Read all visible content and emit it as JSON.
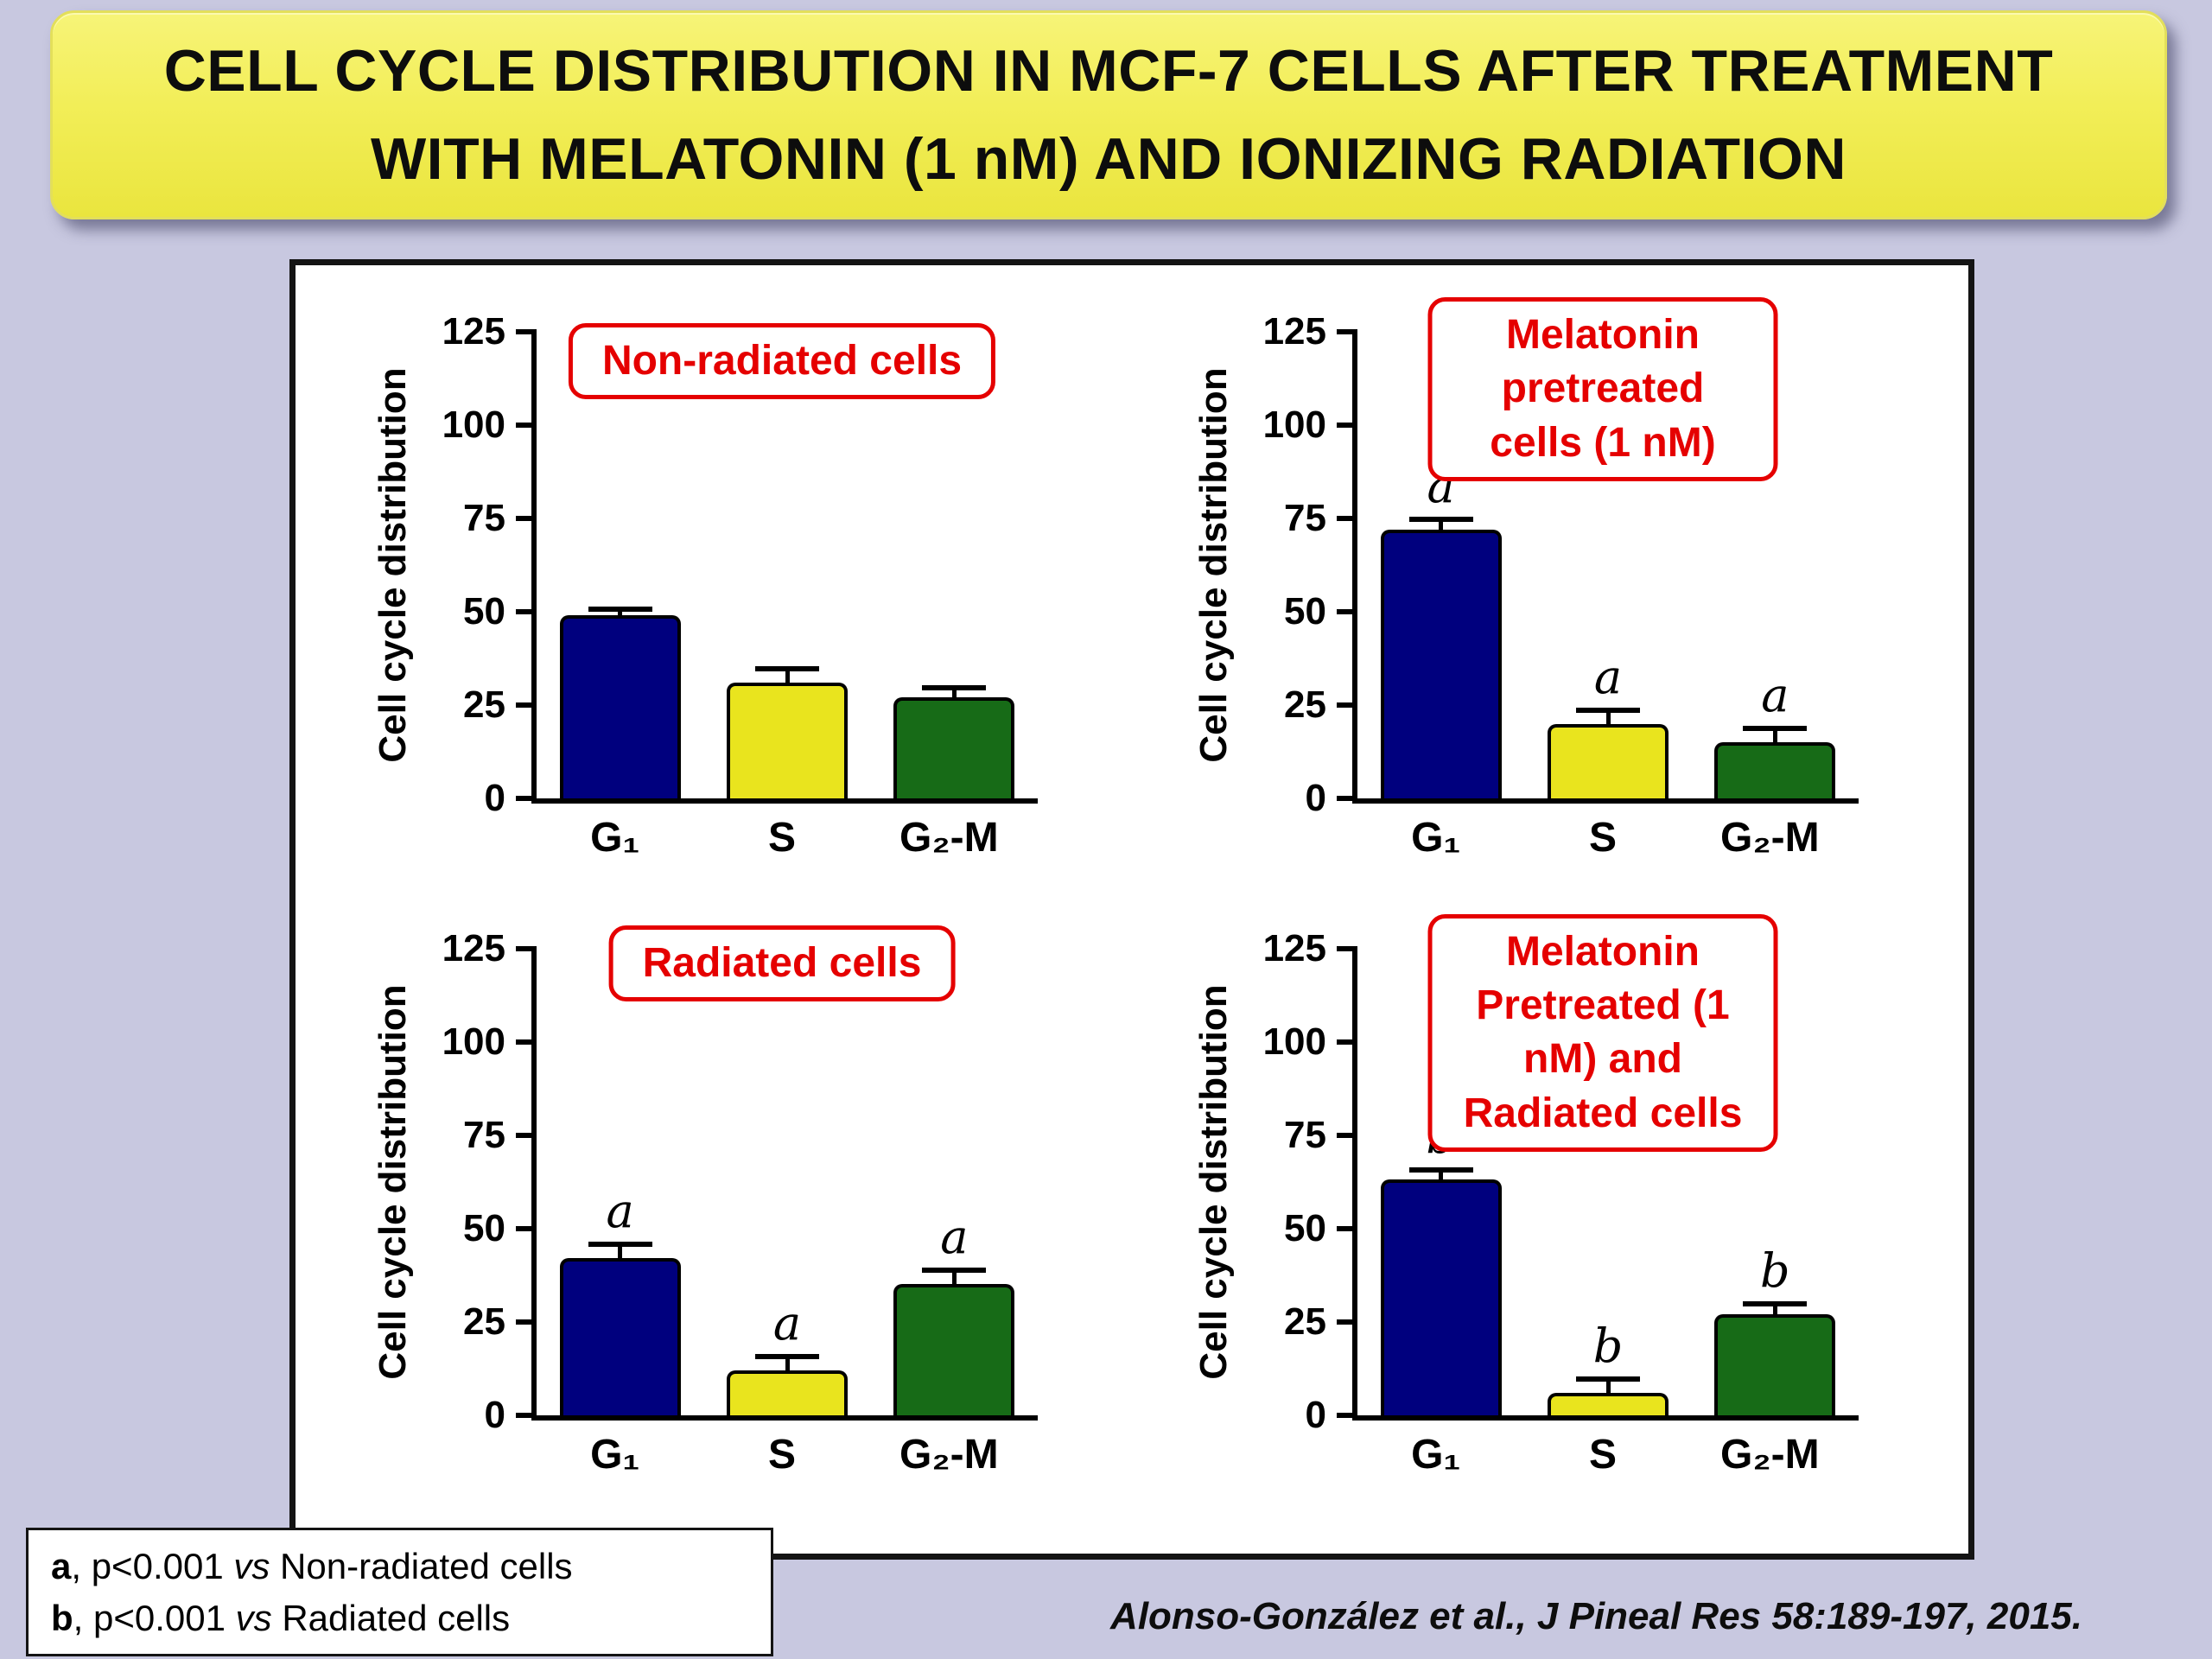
{
  "title": {
    "line1": "CELL CYCLE DISTRIBUTION IN MCF-7 CELLS AFTER TREATMENT",
    "line2": "WITH MELATONIN (1 nM) AND IONIZING RADIATION"
  },
  "citation": "Alonso-González et al., J Pineal Res 58:189-197, 2015.",
  "footnote": {
    "lines": [
      {
        "marker": "a",
        "mid": ", p<0.001 ",
        "vs": "vs",
        "rest": " Non-radiated cells"
      },
      {
        "marker": "b",
        "mid": ", p<0.001 ",
        "vs": "vs",
        "rest": " Radiated cells"
      }
    ]
  },
  "colors": {
    "background": "#c8c8e0",
    "banner_fill": "#f2ee58",
    "accent_red": "#e50000",
    "bar_colors": [
      "#00007e",
      "#e9e41e",
      "#176b17"
    ]
  },
  "chart_data": [
    {
      "type": "bar",
      "title": "Non-radiated cells",
      "ylabel": "Cell cycle distribution",
      "ylim": [
        0,
        125
      ],
      "yticks": [
        0,
        25,
        50,
        75,
        100,
        125
      ],
      "categories": [
        "G₁",
        "S",
        "G₂-M"
      ],
      "values": [
        49,
        31,
        27
      ],
      "errors": [
        1,
        3,
        2
      ],
      "sig_letters": [
        "",
        "",
        ""
      ],
      "legend": "none",
      "grid": false
    },
    {
      "type": "bar",
      "title": "Melatonin pretreated cells (1 nM)",
      "ylabel": "Cell cycle distribution",
      "ylim": [
        0,
        125
      ],
      "yticks": [
        0,
        25,
        50,
        75,
        100,
        125
      ],
      "categories": [
        "G₁",
        "S",
        "G₂-M"
      ],
      "values": [
        72,
        20,
        15
      ],
      "errors": [
        2,
        3,
        3
      ],
      "sig_letters": [
        "a",
        "a",
        "a"
      ],
      "legend": "none",
      "grid": false
    },
    {
      "type": "bar",
      "title": "Radiated cells",
      "ylabel": "Cell cycle distribution",
      "ylim": [
        0,
        125
      ],
      "yticks": [
        0,
        25,
        50,
        75,
        100,
        125
      ],
      "categories": [
        "G₁",
        "S",
        "G₂-M"
      ],
      "values": [
        42,
        12,
        35
      ],
      "errors": [
        3,
        3,
        3
      ],
      "sig_letters": [
        "a",
        "a",
        "a"
      ],
      "legend": "none",
      "grid": false
    },
    {
      "type": "bar",
      "title": "Melatonin Pretreated (1 nM) and Radiated cells",
      "ylabel": "Cell cycle distribution",
      "ylim": [
        0,
        125
      ],
      "yticks": [
        0,
        25,
        50,
        75,
        100,
        125
      ],
      "categories": [
        "G₁",
        "S",
        "G₂-M"
      ],
      "values": [
        63,
        6,
        27
      ],
      "errors": [
        2,
        3,
        2
      ],
      "sig_letters": [
        "b",
        "b",
        "b"
      ],
      "legend": "none",
      "grid": false
    }
  ]
}
